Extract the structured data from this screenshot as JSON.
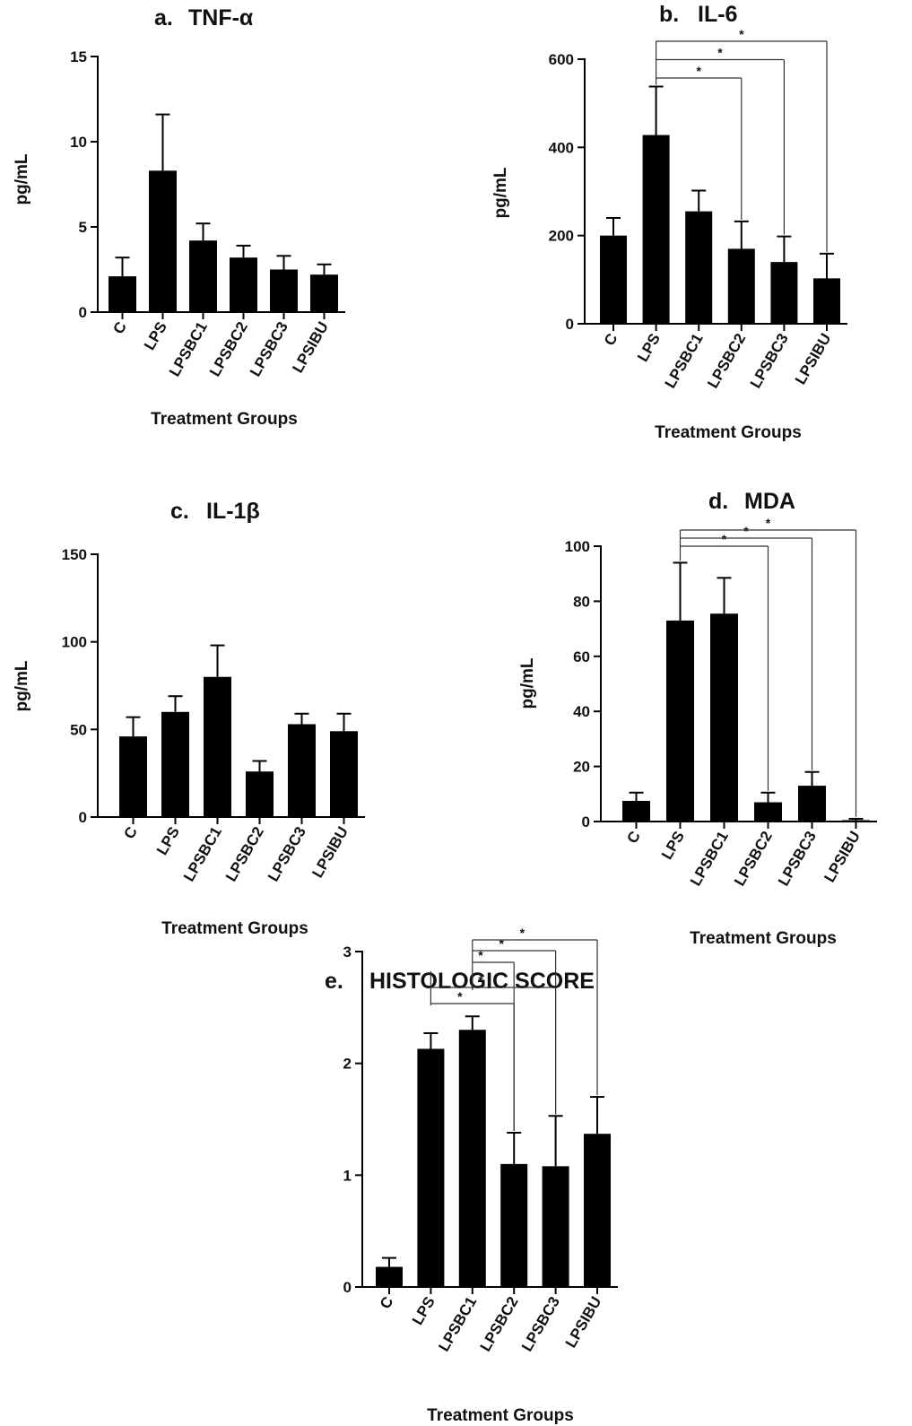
{
  "figure": {
    "panels": [
      {
        "letter": "a.",
        "title": "TNF-α"
      },
      {
        "letter": "b.",
        "title": "IL-6"
      },
      {
        "letter": "c.",
        "title": "IL-1β"
      },
      {
        "letter": "d.",
        "title": "MDA"
      },
      {
        "letter": "e.",
        "title": "HISTOLOGIC SCORE"
      }
    ]
  },
  "chart_data": [
    {
      "type": "bar",
      "title": "TNF-α",
      "xlabel": "Treatment Groups",
      "ylabel": "pg/mL",
      "ylim": [
        0,
        15
      ],
      "yticks": [
        0,
        5,
        10,
        15
      ],
      "categories": [
        "C",
        "LPS",
        "LPSBC1",
        "LPSBC2",
        "LPSBC3",
        "LPSIBU"
      ],
      "values": [
        2.1,
        8.3,
        4.2,
        3.2,
        2.5,
        2.2
      ],
      "errors": [
        1.1,
        3.3,
        1.0,
        0.7,
        0.8,
        0.6
      ],
      "significance": [],
      "bar_color": "#000000"
    },
    {
      "type": "bar",
      "title": "IL-6",
      "xlabel": "Treatment Groups",
      "ylabel": "pg/mL",
      "ylim": [
        0,
        600
      ],
      "yticks": [
        0,
        200,
        400,
        600
      ],
      "categories": [
        "C",
        "LPS",
        "LPSBC1",
        "LPSBC2",
        "LPSBC3",
        "LPSIBU"
      ],
      "values": [
        200,
        428,
        255,
        170,
        140,
        103
      ],
      "errors": [
        40,
        110,
        47,
        62,
        58,
        56
      ],
      "significance": [
        {
          "from": 1,
          "to": 3,
          "label": "*"
        },
        {
          "from": 1,
          "to": 4,
          "label": "*"
        },
        {
          "from": 1,
          "to": 5,
          "label": "*"
        }
      ],
      "bar_color": "#000000"
    },
    {
      "type": "bar",
      "title": "IL-1β",
      "xlabel": "Treatment Groups",
      "ylabel": "pg/mL",
      "ylim": [
        0,
        150
      ],
      "yticks": [
        0,
        50,
        100,
        150
      ],
      "categories": [
        "C",
        "LPS",
        "LPSBC1",
        "LPSBC2",
        "LPSBC3",
        "LPSIBU"
      ],
      "values": [
        46,
        60,
        80,
        26,
        53,
        49
      ],
      "errors": [
        11,
        9,
        18,
        6,
        6,
        10
      ],
      "significance": [],
      "bar_color": "#000000"
    },
    {
      "type": "bar",
      "title": "MDA",
      "xlabel": "Treatment Groups",
      "ylabel": "pg/mL",
      "ylim": [
        0,
        100
      ],
      "yticks": [
        0,
        20,
        40,
        60,
        80,
        100
      ],
      "categories": [
        "C",
        "LPS",
        "LPSBC1",
        "LPSBC2",
        "LPSBC3",
        "LPSIBU"
      ],
      "values": [
        7.5,
        73,
        75.5,
        7,
        13,
        0.5
      ],
      "errors": [
        3,
        21,
        13,
        3.5,
        5,
        0.5
      ],
      "significance": [
        {
          "from": 1,
          "to": 3,
          "label": "*"
        },
        {
          "from": 1,
          "to": 4,
          "label": "*"
        },
        {
          "from": 1,
          "to": 5,
          "label": "*"
        }
      ],
      "bar_color": "#000000"
    },
    {
      "type": "bar",
      "title": "HISTOLOGIC SCORE",
      "xlabel": "Treatment Groups",
      "ylabel": "",
      "ylim": [
        0,
        3
      ],
      "yticks": [
        0,
        1,
        2,
        3
      ],
      "categories": [
        "C",
        "LPS",
        "LPSBC1",
        "LPSBC2",
        "LPSBC3",
        "LPSIBU"
      ],
      "values": [
        0.18,
        2.13,
        2.3,
        1.1,
        1.08,
        1.37
      ],
      "errors": [
        0.08,
        0.14,
        0.12,
        0.28,
        0.45,
        0.33
      ],
      "significance": [
        {
          "from": 1,
          "to": 3,
          "label": "*"
        },
        {
          "from": 1,
          "to": 4,
          "label": "*"
        },
        {
          "from": 2,
          "to": 3,
          "label": "*"
        },
        {
          "from": 2,
          "to": 4,
          "label": "*"
        },
        {
          "from": 2,
          "to": 5,
          "label": "*"
        }
      ],
      "bar_color": "#000000"
    }
  ]
}
